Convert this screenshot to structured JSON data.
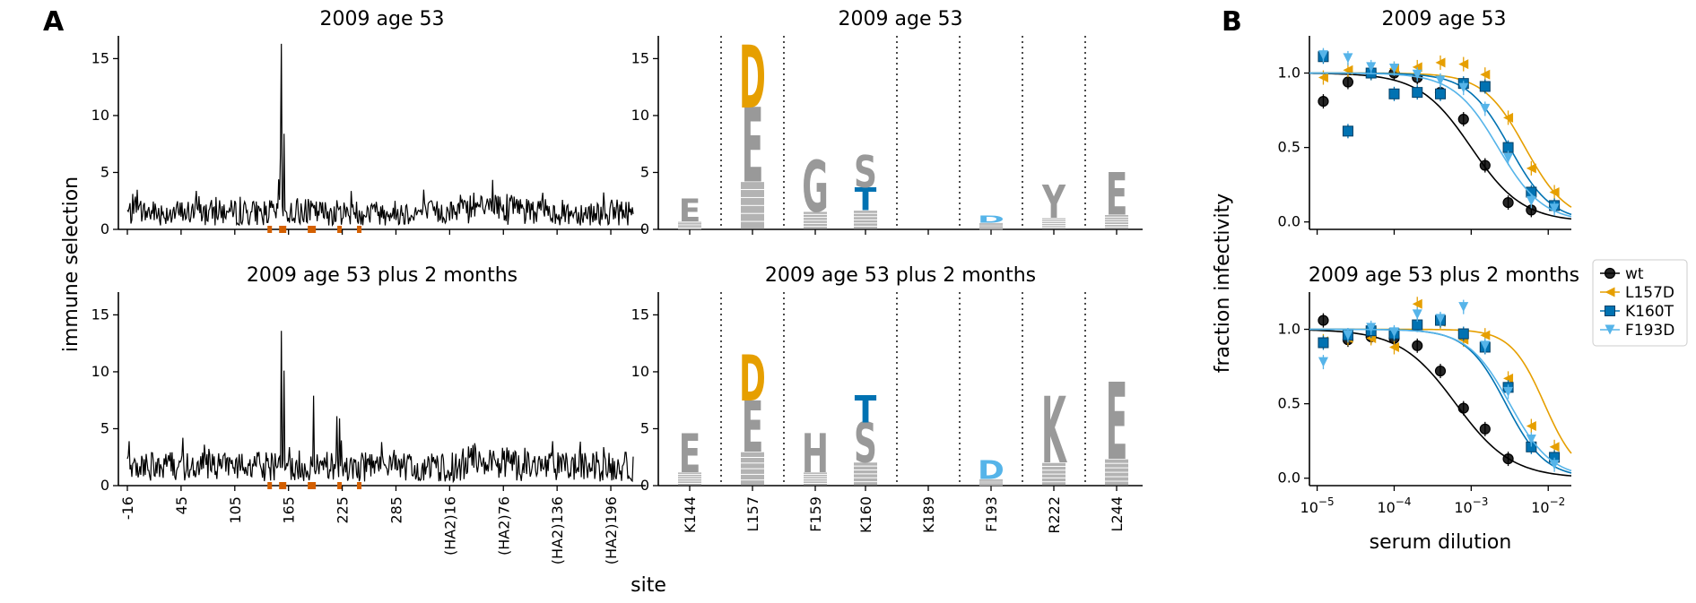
{
  "panel_labels": {
    "a": "A",
    "b": "B"
  },
  "shared_labels": {
    "immune_ylabel": "immune selection",
    "site_xlabel": "site"
  },
  "chart_data": [
    {
      "id": "line_top",
      "type": "line",
      "title": "2009 age 53",
      "ylabel": "immune selection",
      "ylim": [
        0,
        17
      ],
      "yticks": [
        0,
        5,
        10,
        15
      ],
      "xtick_labels": [
        "-16",
        "45",
        "105",
        "165",
        "225",
        "285",
        "(HA2)16",
        "(HA2)76",
        "(HA2)136",
        "(HA2)196"
      ],
      "highlight_sites_color": "#d35f00",
      "peaks": [
        {
          "site": "L157",
          "value": 16.3
        },
        {
          "site": "K160",
          "value": 8.4
        },
        {
          "site": "156",
          "value": 6.7
        },
        {
          "site": "154",
          "value": 4.4
        }
      ],
      "baseline_range": [
        0,
        3
      ],
      "line_color": "#000000"
    },
    {
      "id": "line_bottom",
      "type": "line",
      "title": "2009 age 53 plus 2 months",
      "ylabel": "immune selection",
      "ylim": [
        0,
        17
      ],
      "yticks": [
        0,
        5,
        10,
        15
      ],
      "xtick_labels": [
        "-16",
        "45",
        "105",
        "165",
        "225",
        "285",
        "(HA2)16",
        "(HA2)76",
        "(HA2)136",
        "(HA2)196"
      ],
      "xlabel": "site",
      "highlight_sites_color": "#d35f00",
      "peaks": [
        {
          "site": "L157",
          "value": 13.6
        },
        {
          "site": "K160",
          "value": 10.1
        },
        {
          "site": "F193",
          "value": 7.9
        },
        {
          "site": "219",
          "value": 6.1
        },
        {
          "site": "222",
          "value": 5.9
        }
      ],
      "baseline_range": [
        0,
        3.5
      ],
      "line_color": "#000000"
    },
    {
      "id": "logo_top",
      "type": "logo",
      "title": "2009 age 53",
      "ylim": [
        0,
        17
      ],
      "yticks": [
        0,
        5,
        10,
        15
      ],
      "sites": [
        "K144",
        "L157",
        "F159",
        "K160",
        "K189",
        "F193",
        "R222",
        "L244"
      ],
      "colors": {
        "neutral": "#999999",
        "D": "#e69f00",
        "T": "#0072b2",
        "D_light": "#56b4e9"
      },
      "stacks": [
        [
          {
            "letter": "E",
            "height": 2.0,
            "color": "#999999"
          }
        ],
        [
          {
            "letter": "E",
            "height": 6.5,
            "color": "#999999"
          },
          {
            "letter": "D",
            "height": 5.5,
            "color": "#e69f00"
          }
        ],
        [
          {
            "letter": "G",
            "height": 4.5,
            "color": "#999999"
          }
        ],
        [
          {
            "letter": "T",
            "height": 2.0,
            "color": "#0072b2"
          },
          {
            "letter": "S",
            "height": 2.8,
            "color": "#999999"
          }
        ],
        [],
        [
          {
            "letter": "D",
            "height": 0.6,
            "color": "#56b4e9"
          }
        ],
        [
          {
            "letter": "Y",
            "height": 2.9,
            "color": "#999999"
          }
        ],
        [
          {
            "letter": "E",
            "height": 3.7,
            "color": "#999999"
          }
        ]
      ]
    },
    {
      "id": "logo_bottom",
      "type": "logo",
      "title": "2009 age 53 plus 2 months",
      "ylim": [
        0,
        17
      ],
      "yticks": [
        0,
        5,
        10,
        15
      ],
      "sites": [
        "K144",
        "L157",
        "F159",
        "K160",
        "K189",
        "F193",
        "R222",
        "L244"
      ],
      "colors": {
        "neutral": "#999999",
        "D": "#e69f00",
        "T": "#0072b2",
        "D_light": "#56b4e9"
      },
      "stacks": [
        [
          {
            "letter": "E",
            "height": 3.4,
            "color": "#999999"
          }
        ],
        [
          {
            "letter": "E",
            "height": 4.5,
            "color": "#999999"
          },
          {
            "letter": "D",
            "height": 4.0,
            "color": "#e69f00"
          }
        ],
        [
          {
            "letter": "H",
            "height": 3.4,
            "color": "#999999"
          }
        ],
        [
          {
            "letter": "S",
            "height": 3.5,
            "color": "#999999"
          },
          {
            "letter": "T",
            "height": 2.4,
            "color": "#0072b2"
          }
        ],
        [],
        [
          {
            "letter": "D",
            "height": 1.6,
            "color": "#56b4e9"
          }
        ],
        [
          {
            "letter": "K",
            "height": 5.8,
            "color": "#999999"
          }
        ],
        [
          {
            "letter": "E",
            "height": 6.7,
            "color": "#999999"
          }
        ]
      ]
    },
    {
      "id": "neut_top",
      "type": "scatter",
      "title": "2009 age 53",
      "ylabel": "fraction infectivity",
      "xscale": "log",
      "xlim_log10": [
        -5.1,
        -1.7
      ],
      "ylim": [
        -0.05,
        1.25
      ],
      "yticks": [
        0.0,
        0.5,
        1.0
      ],
      "series": [
        {
          "name": "wt",
          "color": "#000000",
          "marker": "circle",
          "ic50_log10": -3.0,
          "slope": 1.3,
          "points": [
            [
              -4.92,
              0.81
            ],
            [
              -4.6,
              0.94
            ],
            [
              -4.3,
              1.0
            ],
            [
              -4.0,
              1.0
            ],
            [
              -3.7,
              0.97
            ],
            [
              -3.4,
              0.87
            ],
            [
              -3.1,
              0.69
            ],
            [
              -2.82,
              0.38
            ],
            [
              -2.52,
              0.13
            ],
            [
              -2.22,
              0.08
            ]
          ]
        },
        {
          "name": "L157D",
          "color": "#e69f00",
          "marker": "triangle-left",
          "ic50_log10": -2.3,
          "slope": 1.6,
          "points": [
            [
              -4.92,
              0.97
            ],
            [
              -4.6,
              1.02
            ],
            [
              -4.3,
              1.0
            ],
            [
              -4.0,
              1.03
            ],
            [
              -3.7,
              1.04
            ],
            [
              -3.4,
              1.07
            ],
            [
              -3.1,
              1.06
            ],
            [
              -2.82,
              0.99
            ],
            [
              -2.52,
              0.7
            ],
            [
              -2.22,
              0.36
            ],
            [
              -1.92,
              0.2
            ]
          ]
        },
        {
          "name": "K160T",
          "color": "#0072b2",
          "marker": "square",
          "ic50_log10": -2.5,
          "slope": 1.6,
          "points": [
            [
              -4.92,
              1.11
            ],
            [
              -4.6,
              0.61
            ],
            [
              -4.3,
              1.0
            ],
            [
              -4.0,
              0.86
            ],
            [
              -3.7,
              0.87
            ],
            [
              -3.4,
              0.86
            ],
            [
              -3.1,
              0.93
            ],
            [
              -2.82,
              0.91
            ],
            [
              -2.52,
              0.5
            ],
            [
              -2.22,
              0.2
            ],
            [
              -1.92,
              0.11
            ]
          ]
        },
        {
          "name": "F193D",
          "color": "#56b4e9",
          "marker": "triangle-down",
          "ic50_log10": -2.65,
          "slope": 1.5,
          "points": [
            [
              -4.92,
              1.12
            ],
            [
              -4.6,
              1.1
            ],
            [
              -4.3,
              1.04
            ],
            [
              -4.0,
              1.03
            ],
            [
              -3.7,
              0.99
            ],
            [
              -3.4,
              0.95
            ],
            [
              -3.1,
              0.9
            ],
            [
              -2.82,
              0.76
            ],
            [
              -2.52,
              0.43
            ],
            [
              -2.22,
              0.14
            ],
            [
              -1.92,
              0.09
            ]
          ]
        }
      ]
    },
    {
      "id": "neut_bottom",
      "type": "scatter",
      "title": "2009 age 53 plus 2 months",
      "ylabel": "fraction infectivity",
      "xlabel": "serum dilution",
      "xscale": "log",
      "xlim_log10": [
        -5.1,
        -1.7
      ],
      "xticks_log10": [
        -5,
        -4,
        -3,
        -2
      ],
      "ylim": [
        -0.05,
        1.25
      ],
      "yticks": [
        0.0,
        0.5,
        1.0
      ],
      "series": [
        {
          "name": "wt",
          "color": "#000000",
          "marker": "circle",
          "ic50_log10": -3.2,
          "slope": 1.2,
          "points": [
            [
              -4.92,
              1.06
            ],
            [
              -4.6,
              0.93
            ],
            [
              -4.3,
              0.95
            ],
            [
              -4.0,
              0.94
            ],
            [
              -3.7,
              0.89
            ],
            [
              -3.4,
              0.72
            ],
            [
              -3.1,
              0.47
            ],
            [
              -2.82,
              0.33
            ],
            [
              -2.52,
              0.13
            ]
          ]
        },
        {
          "name": "L157D",
          "color": "#e69f00",
          "marker": "triangle-left",
          "ic50_log10": -2.05,
          "slope": 2.0,
          "points": [
            [
              -4.92,
              0.92
            ],
            [
              -4.6,
              0.94
            ],
            [
              -4.3,
              0.94
            ],
            [
              -4.0,
              0.88
            ],
            [
              -3.7,
              1.17
            ],
            [
              -3.4,
              1.05
            ],
            [
              -3.1,
              0.93
            ],
            [
              -2.82,
              0.96
            ],
            [
              -2.52,
              0.67
            ],
            [
              -2.22,
              0.35
            ],
            [
              -1.92,
              0.21
            ]
          ]
        },
        {
          "name": "K160T",
          "color": "#0072b2",
          "marker": "square",
          "ic50_log10": -2.55,
          "slope": 1.7,
          "points": [
            [
              -4.92,
              0.91
            ],
            [
              -4.6,
              0.96
            ],
            [
              -4.3,
              0.99
            ],
            [
              -4.0,
              0.97
            ],
            [
              -3.7,
              1.03
            ],
            [
              -3.4,
              1.06
            ],
            [
              -3.1,
              0.97
            ],
            [
              -2.82,
              0.88
            ],
            [
              -2.52,
              0.61
            ],
            [
              -2.22,
              0.21
            ],
            [
              -1.92,
              0.14
            ]
          ]
        },
        {
          "name": "F193D",
          "color": "#56b4e9",
          "marker": "triangle-down",
          "ic50_log10": -2.5,
          "slope": 1.6,
          "points": [
            [
              -4.92,
              0.78
            ],
            [
              -4.6,
              0.96
            ],
            [
              -4.3,
              1.01
            ],
            [
              -4.0,
              0.98
            ],
            [
              -3.7,
              1.1
            ],
            [
              -3.4,
              1.07
            ],
            [
              -3.1,
              1.15
            ],
            [
              -2.82,
              0.89
            ],
            [
              -2.52,
              0.58
            ],
            [
              -2.22,
              0.26
            ],
            [
              -1.92,
              0.09
            ]
          ]
        }
      ]
    }
  ],
  "legend": {
    "position": "right",
    "entries": [
      "wt",
      "L157D",
      "K160T",
      "F193D"
    ]
  }
}
